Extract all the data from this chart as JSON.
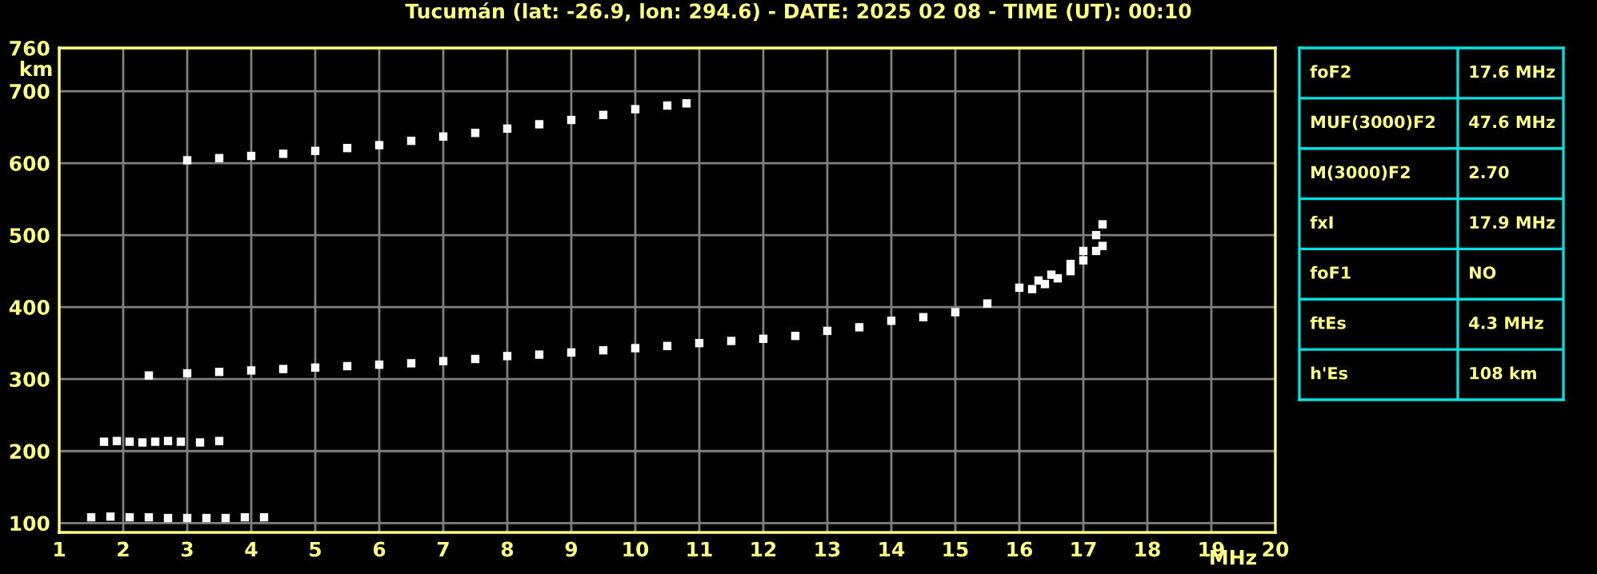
{
  "chart_data": [
    {
      "type": "scatter",
      "title": "Tucumán (lat: -26.9, lon: 294.6) - DATE: 2025 02 08 - TIME (UT): 00:10",
      "xlabel": "MHz",
      "ylabel": "km",
      "xlim": [
        1,
        20
      ],
      "xticks": [
        1,
        2,
        3,
        4,
        5,
        6,
        7,
        8,
        9,
        10,
        11,
        12,
        13,
        14,
        15,
        16,
        17,
        18,
        19,
        20
      ],
      "ylim": [
        87,
        760
      ],
      "yticks": [
        100,
        200,
        300,
        400,
        500,
        600,
        700,
        760
      ],
      "grid": true,
      "legend": false,
      "marker": "square",
      "series": [
        {
          "color": "#ffffff",
          "x": [
            1.5,
            1.8,
            2.1,
            2.4,
            2.7,
            3.0,
            3.3,
            3.6,
            3.9,
            4.2
          ],
          "values": [
            108,
            109,
            108,
            108,
            107,
            107,
            107,
            107,
            108,
            108
          ]
        },
        {
          "color": "#ffffff",
          "x": [
            1.7,
            1.9,
            2.1,
            2.3,
            2.5,
            2.7,
            2.9,
            3.2,
            3.5
          ],
          "values": [
            213,
            214,
            213,
            212,
            213,
            214,
            213,
            212,
            214
          ]
        },
        {
          "color": "#ffffff",
          "x": [
            2.4,
            3,
            3.5,
            4,
            4.5,
            5,
            5.5,
            6,
            6.5,
            7,
            7.5,
            8,
            8.5,
            9,
            9.5,
            10,
            10.5,
            11,
            11.5,
            12,
            12.5,
            13,
            13.5,
            14,
            14.5,
            15,
            15.5,
            16,
            16.3,
            16.5,
            16.8,
            17.0,
            17.2,
            17.3
          ],
          "values": [
            305,
            308,
            310,
            312,
            314,
            316,
            318,
            320,
            322,
            325,
            328,
            332,
            334,
            337,
            340,
            343,
            346,
            350,
            353,
            356,
            360,
            367,
            372,
            381,
            386,
            393,
            405,
            427,
            437,
            445,
            460,
            478,
            500,
            515
          ]
        },
        {
          "color": "#ffffff",
          "x": [
            16.2,
            16.4,
            16.6,
            16.8,
            17.0,
            17.2,
            17.3
          ],
          "values": [
            425,
            432,
            440,
            450,
            465,
            478,
            485
          ]
        },
        {
          "color": "#ffffff",
          "x": [
            3,
            3.5,
            4,
            4.5,
            5,
            5.5,
            6,
            6.5,
            7,
            7.5,
            8,
            8.5,
            9,
            9.5,
            10,
            10.5,
            10.8
          ],
          "values": [
            604,
            607,
            610,
            613,
            617,
            621,
            625,
            631,
            637,
            642,
            648,
            654,
            660,
            667,
            675,
            680,
            683
          ]
        }
      ]
    },
    {
      "type": "other",
      "categories": [
        "foF2",
        "MUF(3000)F2",
        "M(3000)F2",
        "fxI",
        "foF1",
        "ftEs",
        "h'Es"
      ],
      "value_labels": [
        "17.6 MHz",
        "47.6 MHz",
        "2.70",
        "17.9 MHz",
        "NO",
        "4.3 MHz",
        "108 km"
      ]
    }
  ]
}
